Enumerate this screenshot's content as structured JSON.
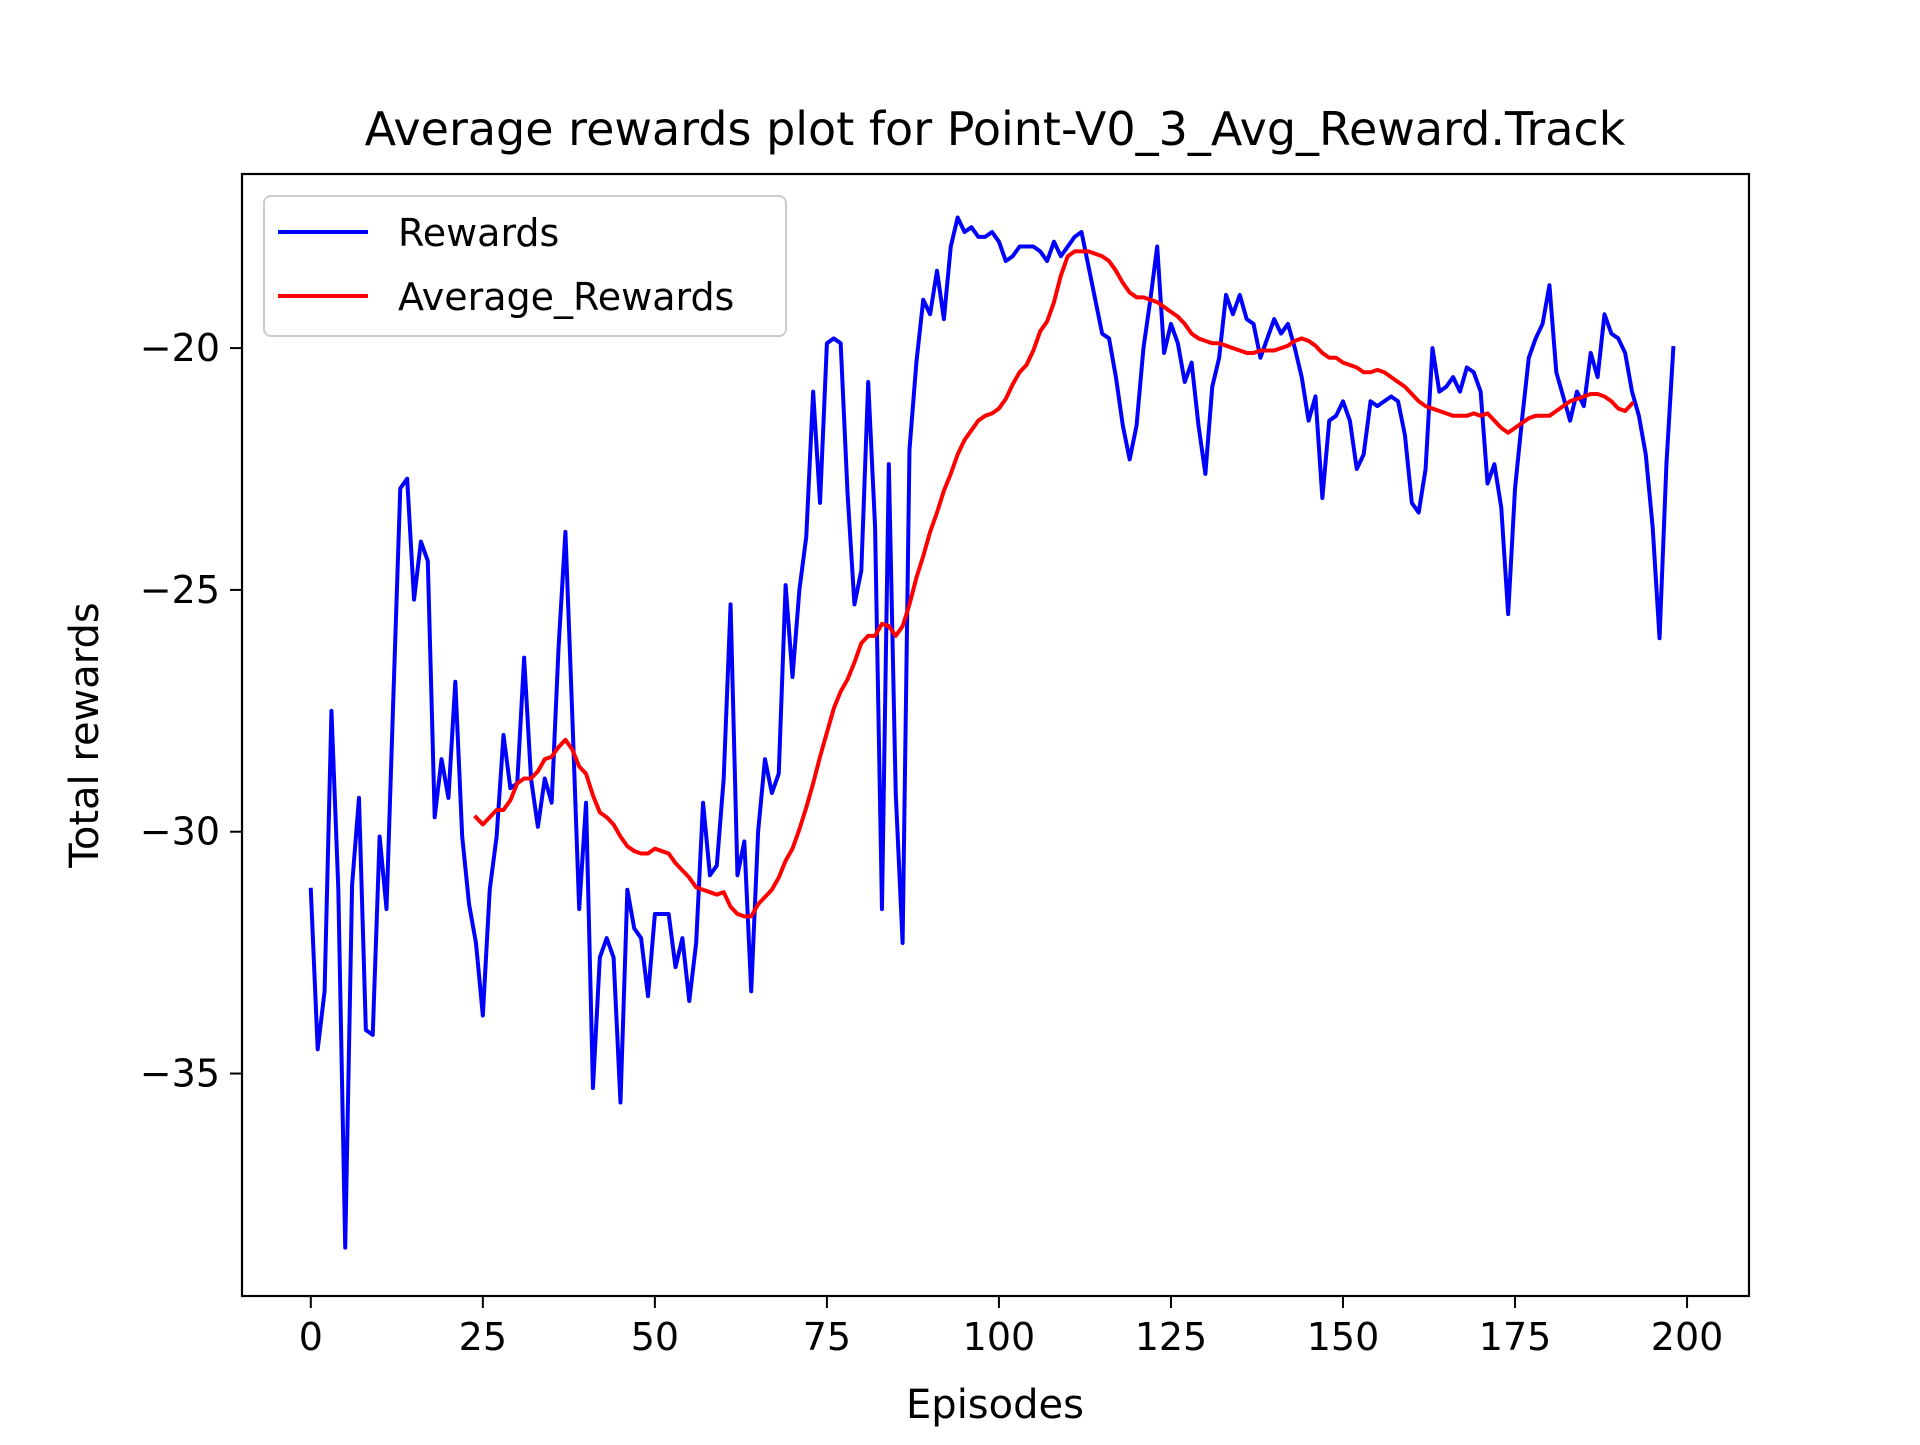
{
  "chart_data": {
    "type": "line",
    "title": "Average rewards plot for Point-V0_3_Avg_Reward.Track",
    "xlabel": "Episodes",
    "ylabel": "Total rewards",
    "xlim": [
      -10,
      209
    ],
    "ylim": [
      -39.6,
      -16.4
    ],
    "xticks": [
      0,
      25,
      50,
      75,
      100,
      125,
      150,
      175,
      200
    ],
    "xtick_labels": [
      "0",
      "25",
      "50",
      "75",
      "100",
      "125",
      "150",
      "175",
      "200"
    ],
    "yticks": [
      -35,
      -30,
      -25,
      -20
    ],
    "ytick_labels": [
      "−35",
      "−30",
      "−25",
      "−20"
    ],
    "grid": false,
    "legend_position": "upper-left",
    "series": [
      {
        "name": "Rewards",
        "color": "#0000ff",
        "x_start": 0,
        "values": [
          -31.2,
          -34.5,
          -33.3,
          -27.5,
          -31.2,
          -38.6,
          -31.1,
          -29.3,
          -34.1,
          -34.2,
          -30.1,
          -31.6,
          -27.2,
          -22.9,
          -22.7,
          -25.2,
          -24.0,
          -24.4,
          -29.7,
          -28.5,
          -29.3,
          -26.9,
          -30.1,
          -31.5,
          -32.3,
          -33.8,
          -31.2,
          -30.1,
          -28.0,
          -29.1,
          -29.0,
          -26.4,
          -28.9,
          -29.9,
          -28.9,
          -29.4,
          -26.2,
          -23.8,
          -27.6,
          -31.6,
          -29.4,
          -35.3,
          -32.6,
          -32.2,
          -32.6,
          -35.6,
          -31.2,
          -32.0,
          -32.2,
          -33.4,
          -31.7,
          -31.7,
          -31.7,
          -32.8,
          -32.2,
          -33.5,
          -32.3,
          -29.4,
          -30.9,
          -30.7,
          -28.9,
          -25.3,
          -30.9,
          -30.2,
          -33.3,
          -30.0,
          -28.5,
          -29.2,
          -28.8,
          -24.9,
          -26.8,
          -25.0,
          -23.9,
          -20.9,
          -23.2,
          -19.9,
          -19.8,
          -19.9,
          -23.0,
          -25.3,
          -24.6,
          -20.7,
          -23.7,
          -31.6,
          -22.4,
          -29.2,
          -32.3,
          -22.1,
          -20.3,
          -19.0,
          -19.3,
          -18.4,
          -19.4,
          -17.9,
          -17.3,
          -17.6,
          -17.5,
          -17.7,
          -17.7,
          -17.6,
          -17.8,
          -18.2,
          -18.1,
          -17.9,
          -17.9,
          -17.9,
          -18.0,
          -18.2,
          -17.8,
          -18.1,
          -17.9,
          -17.7,
          -17.6,
          -18.3,
          -19.0,
          -19.7,
          -19.8,
          -20.6,
          -21.6,
          -22.3,
          -21.6,
          -20.0,
          -19.0,
          -17.9,
          -20.1,
          -19.5,
          -19.9,
          -20.7,
          -20.3,
          -21.6,
          -22.6,
          -20.8,
          -20.2,
          -18.9,
          -19.3,
          -18.9,
          -19.4,
          -19.5,
          -20.2,
          -19.8,
          -19.4,
          -19.7,
          -19.5,
          -20.0,
          -20.6,
          -21.5,
          -21.0,
          -23.1,
          -21.5,
          -21.4,
          -21.1,
          -21.5,
          -22.5,
          -22.2,
          -21.1,
          -21.2,
          -21.1,
          -21.0,
          -21.1,
          -21.8,
          -23.2,
          -23.4,
          -22.5,
          -20.0,
          -20.9,
          -20.8,
          -20.6,
          -20.9,
          -20.4,
          -20.5,
          -20.9,
          -22.8,
          -22.4,
          -23.3,
          -25.5,
          -22.9,
          -21.5,
          -20.2,
          -19.8,
          -19.5,
          -18.7,
          -20.5,
          -21.0,
          -21.5,
          -20.9,
          -21.2,
          -20.1,
          -20.6,
          -19.3,
          -19.7,
          -19.8,
          -20.1,
          -20.9,
          -21.4,
          -22.2,
          -23.7,
          -26.0,
          -22.4,
          -20.0
        ]
      },
      {
        "name": "Average_Rewards",
        "color": "#ff0000",
        "x_start": 24,
        "values": [
          -29.7,
          -29.85,
          -29.7,
          -29.55,
          -29.55,
          -29.35,
          -29.0,
          -28.9,
          -28.9,
          -28.75,
          -28.5,
          -28.45,
          -28.25,
          -28.1,
          -28.3,
          -28.65,
          -28.8,
          -29.25,
          -29.6,
          -29.7,
          -29.85,
          -30.1,
          -30.3,
          -30.4,
          -30.45,
          -30.45,
          -30.35,
          -30.4,
          -30.45,
          -30.65,
          -30.8,
          -30.95,
          -31.15,
          -31.2,
          -31.25,
          -31.3,
          -31.25,
          -31.55,
          -31.7,
          -31.75,
          -31.75,
          -31.5,
          -31.35,
          -31.2,
          -30.95,
          -30.6,
          -30.35,
          -29.95,
          -29.5,
          -29.0,
          -28.45,
          -27.95,
          -27.45,
          -27.1,
          -26.85,
          -26.5,
          -26.1,
          -25.95,
          -25.95,
          -25.7,
          -25.75,
          -25.95,
          -25.75,
          -25.3,
          -24.75,
          -24.3,
          -23.8,
          -23.4,
          -22.95,
          -22.6,
          -22.2,
          -21.9,
          -21.7,
          -21.5,
          -21.4,
          -21.35,
          -21.25,
          -21.05,
          -20.75,
          -20.5,
          -20.35,
          -20.05,
          -19.65,
          -19.45,
          -19.05,
          -18.5,
          -18.1,
          -18.0,
          -18.0,
          -18.0,
          -18.05,
          -18.1,
          -18.2,
          -18.4,
          -18.65,
          -18.85,
          -18.95,
          -18.95,
          -19.0,
          -19.05,
          -19.15,
          -19.25,
          -19.35,
          -19.5,
          -19.7,
          -19.8,
          -19.85,
          -19.9,
          -19.9,
          -19.95,
          -20.0,
          -20.05,
          -20.1,
          -20.1,
          -20.05,
          -20.05,
          -20.05,
          -20.0,
          -19.95,
          -19.85,
          -19.8,
          -19.85,
          -19.95,
          -20.1,
          -20.2,
          -20.2,
          -20.3,
          -20.35,
          -20.4,
          -20.5,
          -20.5,
          -20.45,
          -20.5,
          -20.6,
          -20.7,
          -20.8,
          -20.95,
          -21.1,
          -21.2,
          -21.25,
          -21.3,
          -21.35,
          -21.4,
          -21.4,
          -21.4,
          -21.35,
          -21.4,
          -21.35,
          -21.5,
          -21.65,
          -21.75,
          -21.65,
          -21.55,
          -21.45,
          -21.4,
          -21.4,
          -21.4,
          -21.3,
          -21.2,
          -21.1,
          -21.05,
          -21.0,
          -20.95,
          -20.95,
          -21.0,
          -21.1,
          -21.25,
          -21.3,
          -21.15
        ]
      }
    ]
  }
}
